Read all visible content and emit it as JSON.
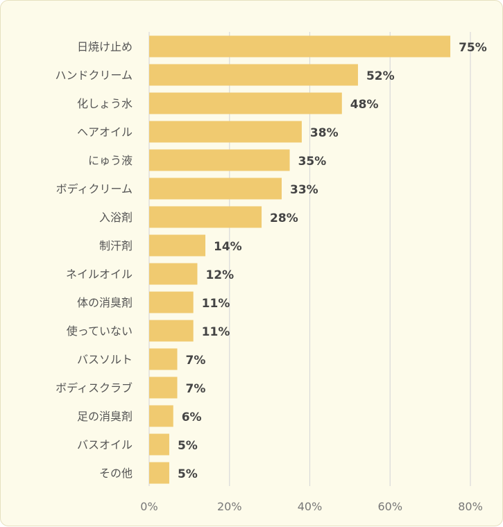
{
  "chart_data": {
    "type": "bar",
    "orientation": "horizontal",
    "categories": [
      "日焼け止め",
      "ハンドクリーム",
      "化しょう水",
      "ヘアオイル",
      "にゅう液",
      "ボディクリーム",
      "入浴剤",
      "制汗剤",
      "ネイルオイル",
      "体の消臭剤",
      "使っていない",
      "バスソルト",
      "ボディスクラブ",
      "足の消臭剤",
      "バスオイル",
      "その他"
    ],
    "values": [
      75,
      52,
      48,
      38,
      35,
      33,
      28,
      14,
      12,
      11,
      11,
      7,
      7,
      6,
      5,
      5
    ],
    "value_labels": [
      "75%",
      "52%",
      "48%",
      "38%",
      "35%",
      "33%",
      "28%",
      "14%",
      "12%",
      "11%",
      "11%",
      "7%",
      "7%",
      "6%",
      "5%",
      "5%"
    ],
    "xlim": [
      0,
      80
    ],
    "xticks": [
      0,
      20,
      40,
      60,
      80
    ],
    "xtick_labels": [
      "0%",
      "20%",
      "40%",
      "60%",
      "80%"
    ],
    "grid": "vertical",
    "legend": "none",
    "colors": {
      "bar": "#f0ca70",
      "background": "#fdfbea",
      "grid": "#d9d9d9"
    }
  }
}
